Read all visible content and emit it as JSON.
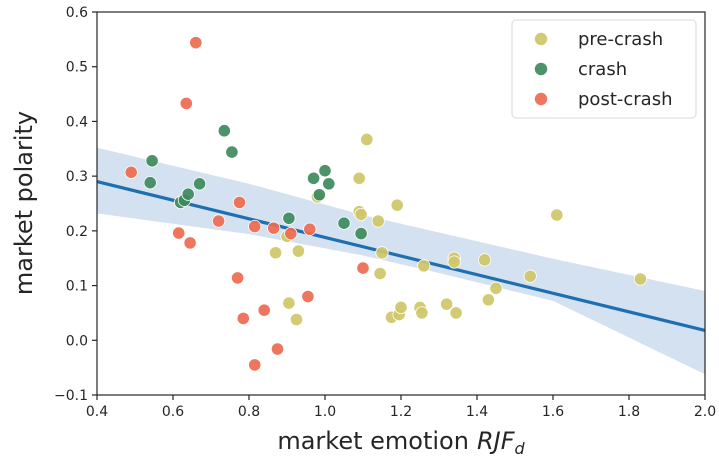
{
  "chart_data": {
    "type": "scatter",
    "xlabel": "market emotion",
    "xlabel_var": "RJF",
    "xlabel_sub": "d",
    "ylabel": "market polarity",
    "xlim": [
      0.4,
      2.0
    ],
    "ylim": [
      -0.1,
      0.6
    ],
    "xticks": [
      "0.4",
      "0.6",
      "0.8",
      "1.0",
      "1.2",
      "1.4",
      "1.6",
      "1.8",
      "2.0"
    ],
    "yticks": [
      "−0.1",
      "0.0",
      "0.1",
      "0.2",
      "0.3",
      "0.4",
      "0.5",
      "0.6"
    ],
    "grid": false,
    "legend_position": "top-right",
    "regression": {
      "x": [
        0.4,
        2.0
      ],
      "y": [
        0.29,
        0.018
      ],
      "ci_upper": [
        [
          0.4,
          0.352
        ],
        [
          0.8,
          0.286
        ],
        [
          1.1,
          0.229
        ],
        [
          1.3,
          0.197
        ],
        [
          1.6,
          0.149
        ],
        [
          2.0,
          0.09
        ]
      ],
      "ci_lower": [
        [
          0.4,
          0.232
        ],
        [
          0.8,
          0.194
        ],
        [
          1.1,
          0.155
        ],
        [
          1.3,
          0.123
        ],
        [
          1.6,
          0.072
        ],
        [
          2.0,
          -0.062
        ]
      ],
      "color": "#1f6fb0",
      "band_color": "#a9c3e3"
    },
    "series": [
      {
        "name": "pre-crash",
        "color": "#cfc768",
        "points": [
          [
            0.87,
            0.16
          ],
          [
            0.9,
            0.19
          ],
          [
            0.905,
            0.068
          ],
          [
            0.925,
            0.038
          ],
          [
            0.93,
            0.163
          ],
          [
            0.98,
            0.262
          ],
          [
            1.09,
            0.296
          ],
          [
            1.09,
            0.235
          ],
          [
            1.095,
            0.23
          ],
          [
            1.11,
            0.367
          ],
          [
            1.14,
            0.218
          ],
          [
            1.145,
            0.122
          ],
          [
            1.15,
            0.16
          ],
          [
            1.175,
            0.042
          ],
          [
            1.19,
            0.247
          ],
          [
            1.195,
            0.047
          ],
          [
            1.2,
            0.06
          ],
          [
            1.25,
            0.06
          ],
          [
            1.255,
            0.05
          ],
          [
            1.26,
            0.136
          ],
          [
            1.32,
            0.066
          ],
          [
            1.34,
            0.15
          ],
          [
            1.34,
            0.143
          ],
          [
            1.345,
            0.05
          ],
          [
            1.42,
            0.147
          ],
          [
            1.43,
            0.074
          ],
          [
            1.45,
            0.095
          ],
          [
            1.54,
            0.117
          ],
          [
            1.61,
            0.229
          ],
          [
            1.83,
            0.112
          ]
        ]
      },
      {
        "name": "crash",
        "color": "#3d8a5c",
        "points": [
          [
            0.54,
            0.288
          ],
          [
            0.545,
            0.328
          ],
          [
            0.62,
            0.252
          ],
          [
            0.63,
            0.256
          ],
          [
            0.64,
            0.267
          ],
          [
            0.67,
            0.286
          ],
          [
            0.735,
            0.383
          ],
          [
            0.755,
            0.344
          ],
          [
            0.905,
            0.223
          ],
          [
            0.97,
            0.296
          ],
          [
            0.985,
            0.266
          ],
          [
            1.0,
            0.31
          ],
          [
            1.01,
            0.286
          ],
          [
            1.05,
            0.214
          ],
          [
            1.095,
            0.195
          ]
        ]
      },
      {
        "name": "post-crash",
        "color": "#ee6a50",
        "points": [
          [
            0.49,
            0.307
          ],
          [
            0.615,
            0.196
          ],
          [
            0.635,
            0.433
          ],
          [
            0.645,
            0.178
          ],
          [
            0.66,
            0.544
          ],
          [
            0.72,
            0.218
          ],
          [
            0.77,
            0.114
          ],
          [
            0.775,
            0.252
          ],
          [
            0.785,
            0.04
          ],
          [
            0.815,
            0.208
          ],
          [
            0.815,
            -0.045
          ],
          [
            0.84,
            0.055
          ],
          [
            0.865,
            0.205
          ],
          [
            0.875,
            -0.016
          ],
          [
            0.91,
            0.195
          ],
          [
            0.955,
            0.08
          ],
          [
            0.96,
            0.203
          ],
          [
            1.1,
            0.132
          ]
        ]
      }
    ]
  }
}
